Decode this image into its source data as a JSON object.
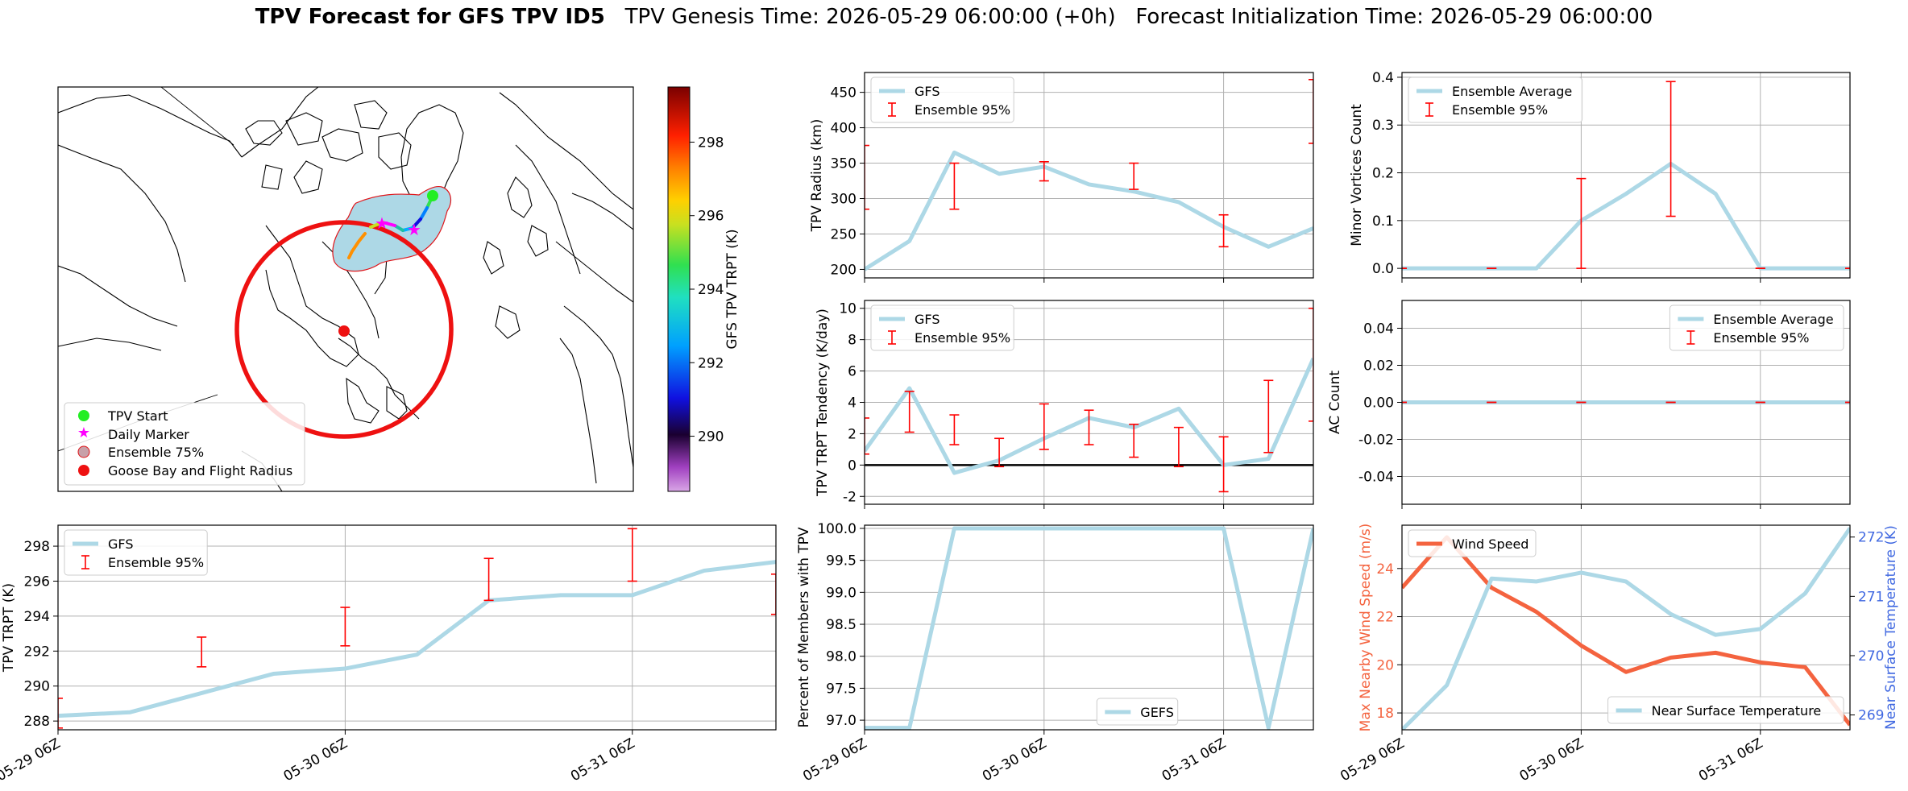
{
  "figure": {
    "title_bold": "TPV Forecast for GFS TPV ID5",
    "title_genesis": "TPV Genesis Time: 2026-05-29 06:00:00 (+0h)",
    "title_init": "Forecast Initialization Time: 2026-05-29 06:00:00"
  },
  "colors": {
    "line": "#add8e6",
    "errorbar": "#ff0000",
    "wind": "#f4633f",
    "temp_axis": "#4169e1"
  },
  "map": {
    "colorbar_label": "GFS TPV TRPT (K)",
    "colorbar_ticks": [
      290,
      292,
      294,
      296,
      298
    ],
    "colorbar_range": [
      288.5,
      299.5
    ],
    "legend": [
      "TPV Start",
      "Daily Marker",
      "Ensemble 75%",
      "Goose Bay and Flight Radius"
    ]
  },
  "chart_data": [
    {
      "id": "trpt",
      "type": "line",
      "ylabel": "TPV TRPT (K)",
      "ylim": [
        287.5,
        299.2
      ],
      "yticks": [
        288,
        290,
        292,
        294,
        296,
        298
      ],
      "xlim": [
        0,
        60
      ],
      "xticks": [
        0,
        24,
        48
      ],
      "xticklabels": [
        "05-29 06Z",
        "05-30 06Z",
        "05-31 06Z"
      ],
      "series": [
        {
          "name": "GFS",
          "x": [
            0,
            6,
            12,
            18,
            24,
            30,
            36,
            42,
            48,
            54,
            60
          ],
          "values": [
            288.3,
            288.5,
            289.6,
            290.7,
            291.0,
            291.8,
            294.9,
            295.2,
            295.2,
            296.6,
            297.1
          ]
        }
      ],
      "errorbars": {
        "name": "Ensemble 95%",
        "x": [
          0,
          12,
          24,
          36,
          48,
          60
        ],
        "lo": [
          287.6,
          291.1,
          292.3,
          294.9,
          296.0,
          294.1
        ],
        "hi": [
          289.3,
          292.8,
          294.5,
          297.3,
          299.0,
          296.4
        ]
      },
      "legend": "top-left"
    },
    {
      "id": "radius",
      "type": "line",
      "ylabel": "TPV Radius (km)",
      "ylim": [
        188,
        478
      ],
      "yticks": [
        200,
        250,
        300,
        350,
        400,
        450
      ],
      "xlim": [
        0,
        60
      ],
      "xticks": [
        0,
        24,
        48
      ],
      "series": [
        {
          "name": "GFS",
          "x": [
            0,
            6,
            12,
            18,
            24,
            30,
            36,
            42,
            48,
            54,
            60
          ],
          "values": [
            200,
            240,
            365,
            335,
            345,
            320,
            310,
            295,
            260,
            232,
            258
          ]
        }
      ],
      "errorbars": {
        "name": "Ensemble 95%",
        "x": [
          0,
          12,
          24,
          36,
          48,
          60
        ],
        "lo": [
          285,
          285,
          325,
          313,
          232,
          378
        ],
        "hi": [
          375,
          350,
          352,
          350,
          277,
          468
        ]
      },
      "legend": "top-left"
    },
    {
      "id": "tendency",
      "type": "line",
      "ylabel": "TPV TRPT Tendency (K/day)",
      "ylim": [
        -2.5,
        10.5
      ],
      "yticks": [
        -2,
        0,
        2,
        4,
        6,
        8,
        10
      ],
      "xlim": [
        0,
        60
      ],
      "xticks": [
        0,
        24,
        48
      ],
      "hline": 0,
      "series": [
        {
          "name": "GFS",
          "x": [
            0,
            6,
            12,
            18,
            24,
            30,
            36,
            42,
            48,
            54,
            60
          ],
          "values": [
            0.9,
            4.9,
            -0.5,
            0.3,
            1.7,
            3.0,
            2.4,
            3.6,
            0.0,
            0.4,
            6.8
          ]
        }
      ],
      "errorbars": {
        "name": "Ensemble 95%",
        "x": [
          0,
          6,
          12,
          18,
          24,
          30,
          36,
          42,
          48,
          54,
          60
        ],
        "lo": [
          0.7,
          2.1,
          1.3,
          -0.1,
          1.0,
          1.3,
          0.5,
          -0.1,
          -1.7,
          0.8,
          2.8
        ],
        "hi": [
          3.0,
          4.7,
          3.2,
          1.7,
          3.9,
          3.5,
          2.6,
          2.4,
          1.8,
          5.4,
          10.0
        ]
      },
      "legend": "top-left"
    },
    {
      "id": "members",
      "type": "line",
      "ylabel": "Percent of Members with TPV",
      "ylim": [
        96.85,
        100.05
      ],
      "yticks": [
        97.0,
        97.5,
        98.0,
        98.5,
        99.0,
        99.5,
        100.0
      ],
      "ytick_format": 1,
      "xlim": [
        0,
        60
      ],
      "xticks": [
        0,
        24,
        48
      ],
      "xticklabels": [
        "05-29 06Z",
        "05-30 06Z",
        "05-31 06Z"
      ],
      "series": [
        {
          "name": "GEFS",
          "x": [
            0,
            6,
            12,
            18,
            24,
            30,
            36,
            42,
            48,
            54,
            60
          ],
          "values": [
            96.88,
            96.88,
            100,
            100,
            100,
            100,
            100,
            100,
            100,
            96.88,
            100
          ]
        }
      ],
      "legend": "bottom-center"
    },
    {
      "id": "minor",
      "type": "line",
      "ylabel": "Minor Vortices Count",
      "ylim": [
        -0.02,
        0.41
      ],
      "yticks": [
        0.0,
        0.1,
        0.2,
        0.3,
        0.4
      ],
      "ytick_format": 1,
      "xlim": [
        0,
        60
      ],
      "xticks": [
        0,
        24,
        48
      ],
      "series": [
        {
          "name": "Ensemble Average",
          "x": [
            0,
            6,
            12,
            18,
            24,
            30,
            36,
            42,
            48,
            54,
            60
          ],
          "values": [
            0,
            0,
            0,
            0,
            0.1,
            0.156,
            0.219,
            0.156,
            0,
            0,
            0
          ]
        }
      ],
      "errorbars": {
        "name": "Ensemble 95%",
        "x": [
          0,
          12,
          24,
          36,
          48,
          60
        ],
        "lo": [
          0,
          0,
          0,
          0.109,
          0,
          0
        ],
        "hi": [
          0,
          0,
          0.188,
          0.391,
          0,
          0
        ]
      },
      "legend": "top-left"
    },
    {
      "id": "ac",
      "type": "line",
      "ylabel": "AC Count",
      "ylim": [
        -0.055,
        0.055
      ],
      "yticks": [
        -0.04,
        -0.02,
        0.0,
        0.02,
        0.04
      ],
      "ytick_format": 2,
      "xlim": [
        0,
        60
      ],
      "xticks": [
        0,
        24,
        48
      ],
      "series": [
        {
          "name": "Ensemble Average",
          "x": [
            0,
            6,
            12,
            18,
            24,
            30,
            36,
            42,
            48,
            54,
            60
          ],
          "values": [
            0,
            0,
            0,
            0,
            0,
            0,
            0,
            0,
            0,
            0,
            0
          ]
        }
      ],
      "errorbars": {
        "name": "Ensemble 95%",
        "x": [
          0,
          12,
          24,
          36,
          48,
          60
        ],
        "lo": [
          0,
          0,
          0,
          0,
          0,
          0
        ],
        "hi": [
          0,
          0,
          0,
          0,
          0,
          0
        ]
      },
      "legend": "top-right"
    },
    {
      "id": "wind_temp",
      "type": "line",
      "ylabel": "Max Nearby Wind Speed (m/s)",
      "ylabel_right": "Near Surface Temperature (K)",
      "ylim": [
        17.3,
        25.8
      ],
      "yticks": [
        18,
        20,
        22,
        24
      ],
      "ylim_right": [
        268.75,
        272.2
      ],
      "yticks_right": [
        269,
        270,
        271,
        272
      ],
      "xlim": [
        0,
        60
      ],
      "xticks": [
        0,
        24,
        48
      ],
      "xticklabels": [
        "05-29 06Z",
        "05-30 06Z",
        "05-31 06Z"
      ],
      "series": [
        {
          "name": "Wind Speed",
          "axis": "left",
          "x": [
            0,
            6,
            12,
            18,
            24,
            30,
            36,
            42,
            48,
            54,
            60
          ],
          "values": [
            23.2,
            25.3,
            23.2,
            22.2,
            20.8,
            19.7,
            20.3,
            20.5,
            20.1,
            19.9,
            17.5
          ]
        },
        {
          "name": "Near Surface Temperature",
          "axis": "right",
          "x": [
            0,
            6,
            12,
            18,
            24,
            30,
            36,
            42,
            48,
            54,
            60
          ],
          "values": [
            268.75,
            269.5,
            271.3,
            271.25,
            271.4,
            271.25,
            270.7,
            270.35,
            270.45,
            271.05,
            272.15
          ]
        }
      ],
      "legend": "top-left / bottom-right"
    }
  ]
}
